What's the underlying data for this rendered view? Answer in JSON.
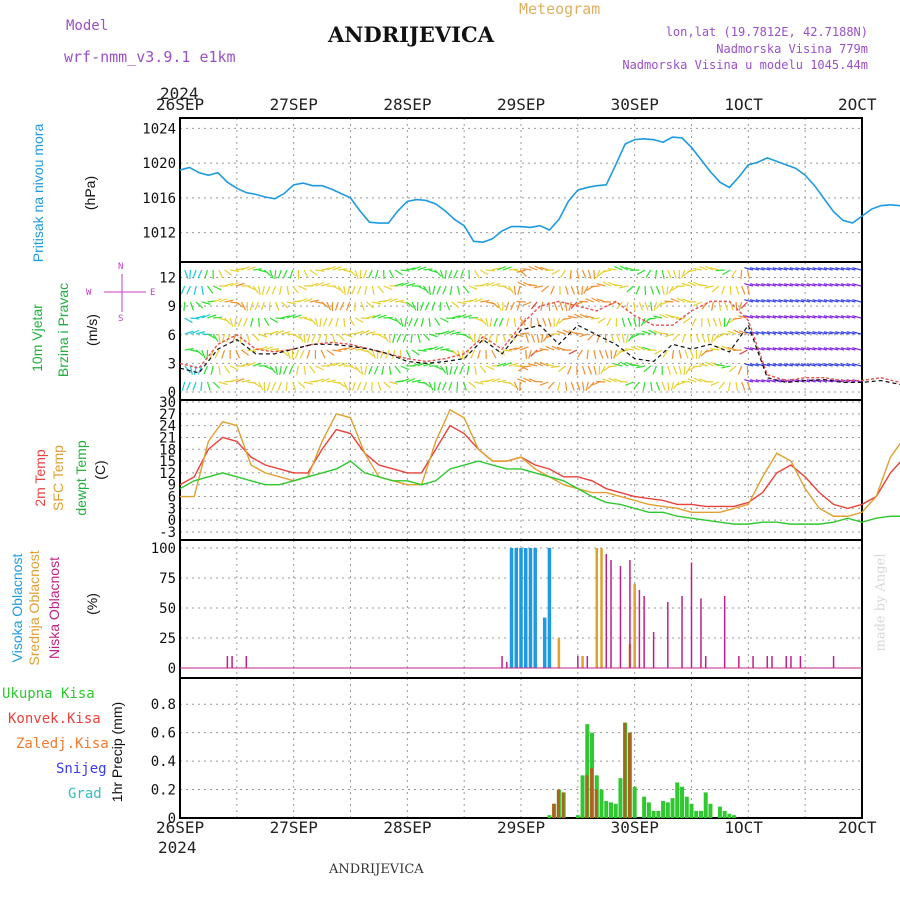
{
  "header": {
    "model_label": "Model",
    "model_name": "wrf-nmm_v3.9.1  e1km",
    "title": "ANDRIJEVICA",
    "meteogram_label": "Meteogram",
    "lonlat": "lon,lat (19.7812E, 42.7188N)",
    "elevation": "Nadmorska Visina 779m",
    "model_elevation": "Nadmorska Visina u modelu 1045.44m"
  },
  "footer": {
    "station": "ANDRIJEVICA",
    "credit": "made by Angel"
  },
  "x_axis": {
    "year": "2024",
    "ticks": [
      "26SEP",
      "27SEP",
      "28SEP",
      "29SEP",
      "30SEP",
      "1OCT",
      "2OCT"
    ]
  },
  "colors": {
    "pressure": "#1e9be0",
    "temp2m": "#e8423c",
    "sfc_temp": "#e0a030",
    "dewpoint": "#2ec82e",
    "high_cloud": "#1e9be0",
    "mid_cloud": "#e0a030",
    "low_cloud": "#c0208a",
    "total_precip": "#30c830",
    "convective": "#e8423c",
    "freezing": "#f07a30",
    "snow": "#3a3af0",
    "hail": "#30c0c0",
    "wind_label": "#20b040",
    "wind_dir_label": "#c040c0"
  },
  "panels": {
    "pressure": {
      "ylabel_color": "Pritisak na nivou mora",
      "units": "(hPa)"
    },
    "wind": {
      "ylabel1": "10m Vjetar",
      "ylabel2": "Brzina i Pravac",
      "units": "(m/s)",
      "compass_n": "N",
      "compass_w": "W",
      "compass_e": "E",
      "compass_s": "S"
    },
    "temp": {
      "ylabel1": "2m Temp",
      "ylabel2": "SFC Temp",
      "ylabel3": "dewpt Temp",
      "units": "(C)"
    },
    "cloud": {
      "ylabel1": "Visoka Oblacnost",
      "ylabel2": "Srednja Oblacnost",
      "ylabel3": "Niska Oblacnost",
      "units": "(%)"
    },
    "precip": {
      "legend": [
        "Ukupna Kisa",
        "Konvek.Kisa",
        "Zaledj.Kisa",
        "Snijeg",
        "Grad"
      ],
      "ylabel": "1hr Precip (mm)"
    }
  },
  "chart_data": [
    {
      "type": "line",
      "ylabel": "Pritisak na nivou mora (hPa)",
      "ylim": [
        1010,
        1024.5
      ],
      "yticks": [
        1012,
        1016,
        1020,
        1024
      ],
      "x_hours": [
        0,
        2,
        4,
        6,
        8,
        10,
        12,
        14,
        16,
        18,
        20,
        22,
        24,
        26,
        28,
        30,
        32,
        34,
        36,
        38,
        40,
        42,
        44,
        46,
        48,
        50,
        52,
        54,
        56,
        58,
        60,
        62,
        64,
        66,
        68,
        70,
        72,
        74,
        76,
        78,
        80,
        82,
        84,
        86,
        88,
        90,
        92,
        94,
        96,
        98,
        100,
        102,
        104,
        106,
        108,
        110,
        112,
        114,
        116,
        118,
        120,
        122,
        124,
        126,
        128,
        130,
        132,
        134,
        136,
        138,
        140,
        142,
        144,
        146,
        148,
        150,
        152,
        154,
        156,
        158,
        160,
        162,
        164,
        166,
        168
      ],
      "series": [
        {
          "name": "pressure",
          "values": [
            1019.2,
            1019.5,
            1018.9,
            1018.6,
            1018.9,
            1017.8,
            1017.1,
            1016.6,
            1016.4,
            1016.1,
            1015.9,
            1016.5,
            1017.5,
            1017.7,
            1017.4,
            1017.4,
            1017.0,
            1016.5,
            1016.0,
            1014.5,
            1013.2,
            1013.1,
            1013.1,
            1014.5,
            1015.6,
            1015.8,
            1015.7,
            1015.3,
            1014.5,
            1013.5,
            1012.8,
            1011.0,
            1010.9,
            1011.3,
            1012.2,
            1012.7,
            1012.7,
            1012.6,
            1012.8,
            1012.3,
            1013.5,
            1015.6,
            1016.9,
            1017.2,
            1017.4,
            1017.5,
            1019.8,
            1022.2,
            1022.7,
            1022.8,
            1022.7,
            1022.4,
            1023.0,
            1022.9,
            1021.8,
            1020.4,
            1019.0,
            1017.8,
            1017.2,
            1018.4,
            1019.8,
            1020.1,
            1020.6,
            1020.2,
            1019.8,
            1019.4,
            1018.6,
            1017.4,
            1015.9,
            1014.4,
            1013.4,
            1013.1,
            1013.9,
            1014.7,
            1015.1,
            1015.2,
            1015.1,
            1015.2,
            1015.2,
            1015.2,
            1015.2,
            1015.2,
            1015.2,
            1015.2,
            1015.2
          ]
        }
      ]
    },
    {
      "type": "line",
      "ylabel": "10m Vjetar Brzina i Pravac (m/s)",
      "ylim": [
        0,
        13
      ],
      "yticks": [
        0,
        3,
        6,
        9,
        12
      ],
      "x_hours": [
        0,
        4,
        8,
        12,
        16,
        20,
        24,
        28,
        32,
        36,
        40,
        44,
        48,
        52,
        56,
        60,
        64,
        68,
        72,
        76,
        80,
        84,
        88,
        92,
        96,
        100,
        104,
        108,
        112,
        116,
        120,
        124,
        128,
        132,
        136,
        140,
        144,
        148,
        152,
        156,
        160,
        164,
        168
      ],
      "series": [
        {
          "name": "wind_speed",
          "values": [
            2.5,
            2.0,
            4.5,
            5.5,
            4.0,
            4.0,
            4.5,
            5.0,
            5.0,
            4.8,
            4.5,
            4.0,
            3.2,
            3.0,
            3.2,
            3.5,
            5.5,
            4.0,
            6.5,
            7.0,
            5.0,
            7.0,
            6.0,
            5.0,
            3.5,
            3.2,
            5.0,
            4.5,
            5.0,
            4.2,
            7.0,
            1.5,
            1.0,
            1.2,
            1.3,
            1.0,
            1.0,
            1.2,
            0.8,
            0.9,
            0.7,
            0.8,
            0.9
          ]
        },
        {
          "name": "wind_gust",
          "values": [
            3.0,
            2.5,
            5.0,
            6.0,
            4.5,
            4.2,
            4.5,
            5.0,
            5.2,
            5.0,
            4.5,
            4.0,
            3.5,
            3.2,
            3.5,
            4.0,
            5.8,
            4.5,
            7.0,
            9.0,
            9.5,
            9.0,
            8.5,
            9.5,
            8.0,
            7.0,
            7.0,
            8.5,
            9.5,
            9.5,
            7.5,
            1.8,
            1.2,
            1.5,
            1.5,
            1.2,
            1.2,
            1.5,
            1.0,
            1.0,
            0.8,
            0.9,
            1.0
          ]
        }
      ]
    },
    {
      "type": "line",
      "ylabel": "2m Temp / SFC Temp / dewpt Temp (C)",
      "ylim": [
        -3,
        30
      ],
      "yticks": [
        -3,
        0,
        3,
        6,
        9,
        12,
        15,
        18,
        21,
        24,
        27,
        30
      ],
      "x_hours": [
        0,
        3,
        6,
        9,
        12,
        15,
        18,
        21,
        24,
        27,
        30,
        33,
        36,
        39,
        42,
        45,
        48,
        51,
        54,
        57,
        60,
        63,
        66,
        69,
        72,
        75,
        78,
        81,
        84,
        87,
        90,
        93,
        96,
        99,
        102,
        105,
        108,
        111,
        114,
        117,
        120,
        123,
        126,
        129,
        132,
        135,
        138,
        141,
        144,
        147,
        150,
        153,
        156,
        159,
        162,
        165,
        168
      ],
      "series": [
        {
          "name": "2m Temp",
          "values": [
            9,
            11,
            18,
            21,
            20,
            16,
            14,
            13,
            12,
            12,
            18,
            23,
            22,
            17,
            14,
            13,
            12,
            12,
            18,
            24,
            22,
            18,
            15,
            15,
            16,
            14,
            13,
            11,
            11,
            10,
            8,
            7,
            6,
            5.5,
            5,
            4,
            4,
            3.5,
            3.5,
            3.5,
            4.5,
            7,
            12,
            14,
            11,
            7,
            4,
            3,
            4,
            6,
            12,
            16,
            14,
            11,
            9,
            8.5,
            8
          ]
        },
        {
          "name": "SFC Temp",
          "values": [
            6,
            6,
            20,
            25,
            24,
            14,
            12,
            11,
            10,
            11,
            20,
            27,
            26,
            17,
            11,
            10,
            9,
            9,
            20,
            28,
            26,
            18,
            15,
            15,
            16,
            13,
            11,
            9,
            8,
            7,
            7,
            6,
            5,
            4,
            3.5,
            3,
            2,
            2,
            2,
            3,
            4,
            11,
            17,
            15,
            8,
            3,
            1,
            1,
            2,
            6,
            16,
            21,
            18,
            9,
            4,
            3,
            2
          ]
        },
        {
          "name": "dewpt Temp",
          "values": [
            8,
            10,
            11,
            12,
            11,
            10,
            9,
            9,
            10,
            11,
            12,
            13,
            15,
            12,
            11,
            10,
            10,
            9,
            10,
            13,
            14,
            15,
            14,
            13,
            13,
            12,
            11,
            10,
            8,
            6,
            4.5,
            4,
            3,
            2,
            2,
            1,
            0.5,
            0,
            -0.5,
            -1,
            -1,
            -0.5,
            -0.5,
            -1,
            -1,
            -1,
            -0.5,
            0.5,
            -0.5,
            0.5,
            1,
            1,
            -1,
            -2,
            2,
            3,
            2
          ]
        }
      ]
    },
    {
      "type": "bar",
      "ylabel": "Visoka / Srednja / Niska Oblacnost (%)",
      "ylim": [
        0,
        100
      ],
      "yticks": [
        0,
        25,
        50,
        75,
        100
      ],
      "series": [
        {
          "name": "Visoka Oblacnost",
          "hours": [
            70,
            71,
            72,
            73,
            74,
            75,
            77,
            78
          ],
          "values": [
            100,
            100,
            100,
            100,
            100,
            100,
            42,
            100
          ]
        },
        {
          "name": "Srednja Oblacnost",
          "hours": [
            80,
            85,
            88,
            89,
            95,
            96
          ],
          "values": [
            25,
            10,
            100,
            100,
            20,
            70
          ]
        },
        {
          "name": "Niska Oblacnost",
          "hours": [
            10,
            11,
            14,
            68,
            69,
            84,
            86,
            90,
            91,
            93,
            95,
            97,
            98,
            100,
            103,
            106,
            108,
            110,
            111,
            115,
            118,
            121,
            124,
            125,
            128,
            129,
            131,
            138
          ],
          "values": [
            10,
            10,
            10,
            10,
            5,
            10,
            10,
            95,
            90,
            85,
            90,
            65,
            60,
            30,
            55,
            60,
            88,
            58,
            10,
            60,
            10,
            10,
            10,
            10,
            10,
            10,
            10,
            10
          ]
        }
      ]
    },
    {
      "type": "bar",
      "ylabel": "1hr Precip (mm)",
      "ylim": [
        0,
        0.9
      ],
      "yticks": [
        0,
        0.2,
        0.4,
        0.6,
        0.8
      ],
      "series": [
        {
          "name": "Ukupna Kisa",
          "hours": [
            78,
            79,
            80,
            81,
            84,
            85,
            86,
            87,
            88,
            89,
            90,
            91,
            92,
            93,
            94,
            95,
            96,
            98,
            99,
            100,
            101,
            102,
            103,
            104,
            105,
            106,
            107,
            108,
            109,
            110,
            111,
            112,
            114,
            115,
            116,
            117
          ],
          "values": [
            0.02,
            0.1,
            0.2,
            0.18,
            0.02,
            0.3,
            0.66,
            0.6,
            0.3,
            0.2,
            0.12,
            0.11,
            0.1,
            0.28,
            0.67,
            0.6,
            0.22,
            0.15,
            0.11,
            0.05,
            0.05,
            0.12,
            0.11,
            0.14,
            0.25,
            0.22,
            0.15,
            0.1,
            0.05,
            0.05,
            0.18,
            0.1,
            0.08,
            0.05,
            0.03,
            0.02
          ]
        },
        {
          "name": "Konvek.Kisa",
          "hours": [
            79,
            80,
            81,
            86,
            87,
            88,
            94,
            95
          ],
          "values": [
            0.1,
            0.2,
            0.18,
            0.3,
            0.35,
            0.2,
            0.67,
            0.6
          ]
        }
      ]
    }
  ]
}
